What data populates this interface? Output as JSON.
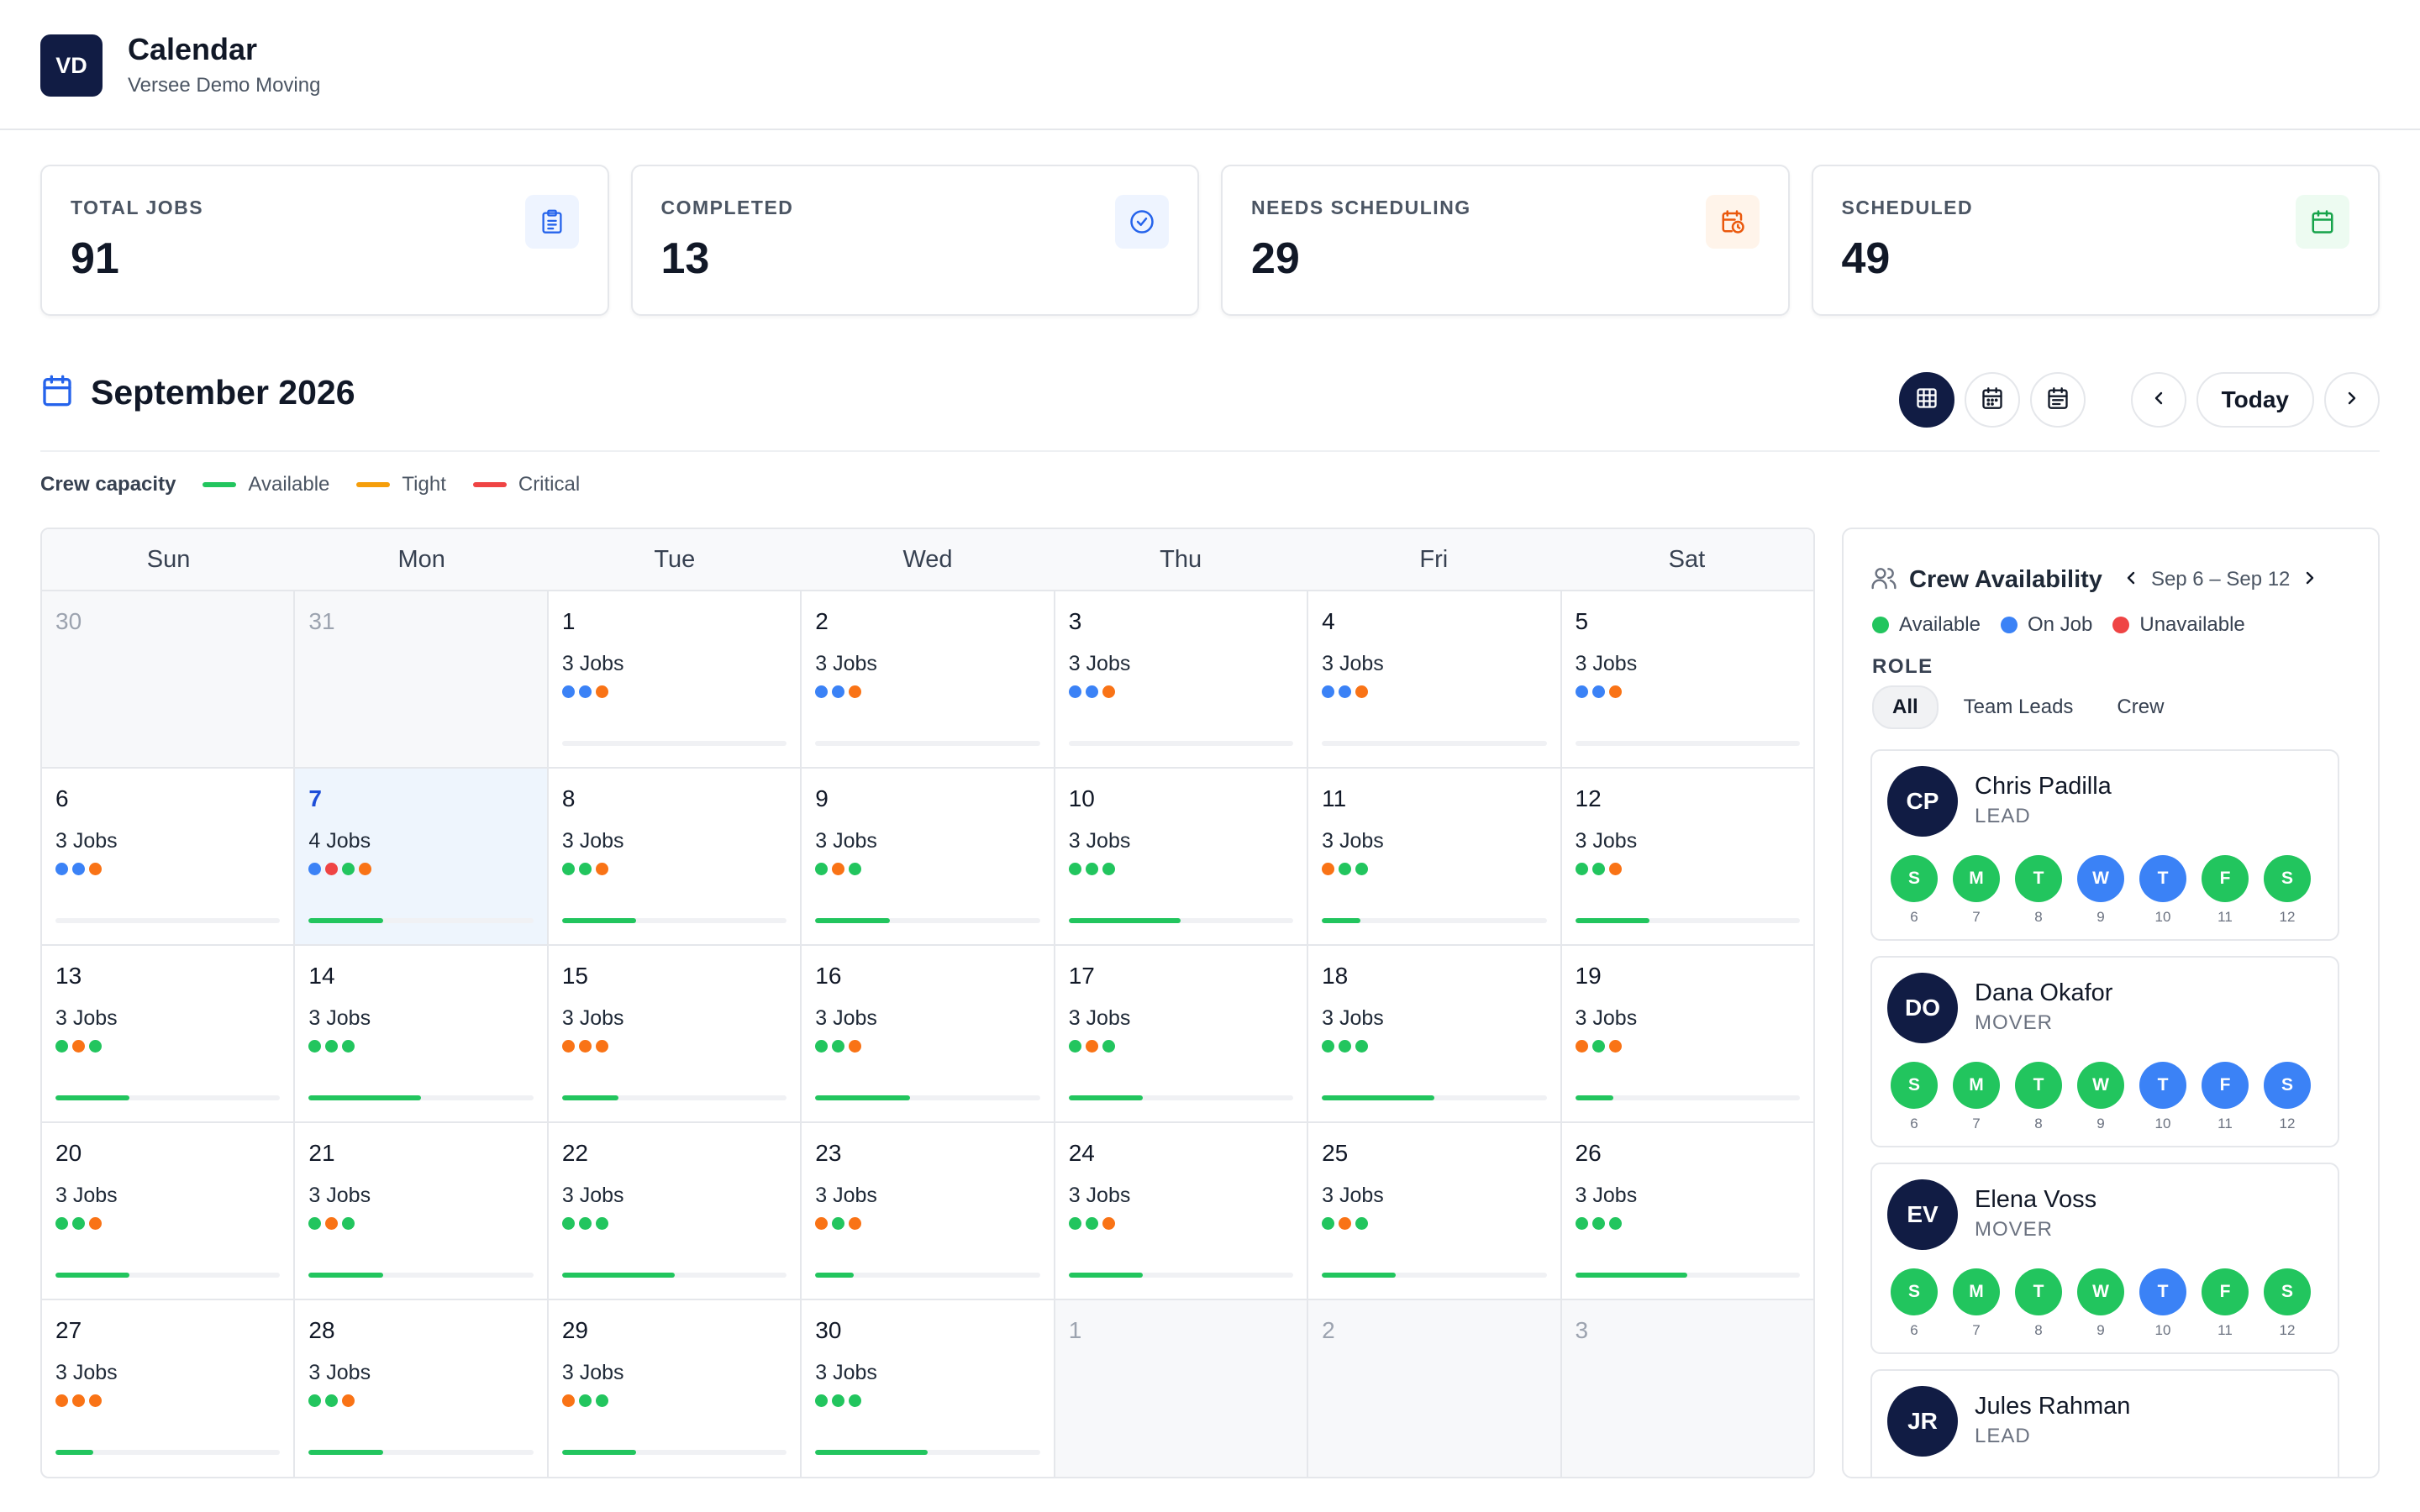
{
  "header": {
    "logo": "VD",
    "title": "Calendar",
    "subtitle": "Versee Demo Moving"
  },
  "stats": [
    {
      "label": "TOTAL JOBS",
      "value": "91",
      "icon": "clipboard-icon",
      "icon_color": "#2563eb",
      "icon_bg": "#eef4ff"
    },
    {
      "label": "COMPLETED",
      "value": "13",
      "icon": "check-circle-icon",
      "icon_color": "#2563eb",
      "icon_bg": "#eef4ff"
    },
    {
      "label": "NEEDS SCHEDULING",
      "value": "29",
      "icon": "calendar-clock-icon",
      "icon_color": "#ea580c",
      "icon_bg": "#fff4ea"
    },
    {
      "label": "SCHEDULED",
      "value": "49",
      "icon": "calendar-icon",
      "icon_color": "#16a34a",
      "icon_bg": "#edfbf1"
    }
  ],
  "month": {
    "title": "September 2026",
    "today_label": "Today"
  },
  "legend": {
    "title": "Crew capacity",
    "items": [
      {
        "label": "Available",
        "color": "#22c55e"
      },
      {
        "label": "Tight",
        "color": "#f59e0b"
      },
      {
        "label": "Critical",
        "color": "#ef4444"
      }
    ]
  },
  "colors": {
    "green": "#22c55e",
    "blue": "#3b82f6",
    "orange": "#f97316",
    "red": "#ef4444",
    "navy": "#111c44"
  },
  "calendar": {
    "weekdays": [
      "Sun",
      "Mon",
      "Tue",
      "Wed",
      "Thu",
      "Fri",
      "Sat"
    ],
    "weeks": [
      [
        {
          "num": "30",
          "outside": true
        },
        {
          "num": "31",
          "outside": true
        },
        {
          "num": "1",
          "jobs": "3 Jobs",
          "dots": [
            "blue",
            "blue",
            "orange"
          ],
          "capacity": 0
        },
        {
          "num": "2",
          "jobs": "3 Jobs",
          "dots": [
            "blue",
            "blue",
            "orange"
          ],
          "capacity": 0
        },
        {
          "num": "3",
          "jobs": "3 Jobs",
          "dots": [
            "blue",
            "blue",
            "orange"
          ],
          "capacity": 0
        },
        {
          "num": "4",
          "jobs": "3 Jobs",
          "dots": [
            "blue",
            "blue",
            "orange"
          ],
          "capacity": 0
        },
        {
          "num": "5",
          "jobs": "3 Jobs",
          "dots": [
            "blue",
            "blue",
            "orange"
          ],
          "capacity": 0
        }
      ],
      [
        {
          "num": "6",
          "jobs": "3 Jobs",
          "dots": [
            "blue",
            "blue",
            "orange"
          ],
          "capacity": 0
        },
        {
          "num": "7",
          "jobs": "4 Jobs",
          "dots": [
            "blue",
            "red",
            "green",
            "orange"
          ],
          "capacity": 0.33,
          "today": true
        },
        {
          "num": "8",
          "jobs": "3 Jobs",
          "dots": [
            "green",
            "green",
            "orange"
          ],
          "capacity": 0.33
        },
        {
          "num": "9",
          "jobs": "3 Jobs",
          "dots": [
            "green",
            "orange",
            "green"
          ],
          "capacity": 0.33
        },
        {
          "num": "10",
          "jobs": "3 Jobs",
          "dots": [
            "green",
            "green",
            "green"
          ],
          "capacity": 0.5
        },
        {
          "num": "11",
          "jobs": "3 Jobs",
          "dots": [
            "orange",
            "green",
            "green"
          ],
          "capacity": 0.17
        },
        {
          "num": "12",
          "jobs": "3 Jobs",
          "dots": [
            "green",
            "green",
            "orange"
          ],
          "capacity": 0.33
        }
      ],
      [
        {
          "num": "13",
          "jobs": "3 Jobs",
          "dots": [
            "green",
            "orange",
            "green"
          ],
          "capacity": 0.33
        },
        {
          "num": "14",
          "jobs": "3 Jobs",
          "dots": [
            "green",
            "green",
            "green"
          ],
          "capacity": 0.5
        },
        {
          "num": "15",
          "jobs": "3 Jobs",
          "dots": [
            "orange",
            "orange",
            "orange"
          ],
          "capacity": 0.25
        },
        {
          "num": "16",
          "jobs": "3 Jobs",
          "dots": [
            "green",
            "green",
            "orange"
          ],
          "capacity": 0.42
        },
        {
          "num": "17",
          "jobs": "3 Jobs",
          "dots": [
            "green",
            "orange",
            "green"
          ],
          "capacity": 0.33
        },
        {
          "num": "18",
          "jobs": "3 Jobs",
          "dots": [
            "green",
            "green",
            "green"
          ],
          "capacity": 0.5
        },
        {
          "num": "19",
          "jobs": "3 Jobs",
          "dots": [
            "orange",
            "green",
            "orange"
          ],
          "capacity": 0.17
        }
      ],
      [
        {
          "num": "20",
          "jobs": "3 Jobs",
          "dots": [
            "green",
            "green",
            "orange"
          ],
          "capacity": 0.33
        },
        {
          "num": "21",
          "jobs": "3 Jobs",
          "dots": [
            "green",
            "orange",
            "green"
          ],
          "capacity": 0.33
        },
        {
          "num": "22",
          "jobs": "3 Jobs",
          "dots": [
            "green",
            "green",
            "green"
          ],
          "capacity": 0.5
        },
        {
          "num": "23",
          "jobs": "3 Jobs",
          "dots": [
            "orange",
            "green",
            "orange"
          ],
          "capacity": 0.17
        },
        {
          "num": "24",
          "jobs": "3 Jobs",
          "dots": [
            "green",
            "green",
            "orange"
          ],
          "capacity": 0.33
        },
        {
          "num": "25",
          "jobs": "3 Jobs",
          "dots": [
            "green",
            "orange",
            "green"
          ],
          "capacity": 0.33
        },
        {
          "num": "26",
          "jobs": "3 Jobs",
          "dots": [
            "green",
            "green",
            "green"
          ],
          "capacity": 0.5
        }
      ],
      [
        {
          "num": "27",
          "jobs": "3 Jobs",
          "dots": [
            "orange",
            "orange",
            "orange"
          ],
          "capacity": 0.17
        },
        {
          "num": "28",
          "jobs": "3 Jobs",
          "dots": [
            "green",
            "green",
            "orange"
          ],
          "capacity": 0.33
        },
        {
          "num": "29",
          "jobs": "3 Jobs",
          "dots": [
            "orange",
            "green",
            "green"
          ],
          "capacity": 0.33
        },
        {
          "num": "30",
          "jobs": "3 Jobs",
          "dots": [
            "green",
            "green",
            "green"
          ],
          "capacity": 0.5
        },
        {
          "num": "1",
          "outside": true
        },
        {
          "num": "2",
          "outside": true
        },
        {
          "num": "3",
          "outside": true
        }
      ]
    ]
  },
  "crew": {
    "title": "Crew Availability",
    "range": "Sep 6 – Sep 12",
    "legend": [
      {
        "label": "Available",
        "color": "#22c55e"
      },
      {
        "label": "On Job",
        "color": "#3b82f6"
      },
      {
        "label": "Unavailable",
        "color": "#ef4444"
      }
    ],
    "role_label": "ROLE",
    "roles": [
      "All",
      "Team Leads",
      "Crew"
    ],
    "active_role": "All",
    "members": [
      {
        "initials": "CP",
        "name": "Chris Padilla",
        "role": "LEAD",
        "days": [
          {
            "letter": "S",
            "num": "6",
            "status": "available"
          },
          {
            "letter": "M",
            "num": "7",
            "status": "available"
          },
          {
            "letter": "T",
            "num": "8",
            "status": "available"
          },
          {
            "letter": "W",
            "num": "9",
            "status": "onjob"
          },
          {
            "letter": "T",
            "num": "10",
            "status": "onjob"
          },
          {
            "letter": "F",
            "num": "11",
            "status": "available"
          },
          {
            "letter": "S",
            "num": "12",
            "status": "available"
          }
        ]
      },
      {
        "initials": "DO",
        "name": "Dana Okafor",
        "role": "MOVER",
        "days": [
          {
            "letter": "S",
            "num": "6",
            "status": "available"
          },
          {
            "letter": "M",
            "num": "7",
            "status": "available"
          },
          {
            "letter": "T",
            "num": "8",
            "status": "available"
          },
          {
            "letter": "W",
            "num": "9",
            "status": "available"
          },
          {
            "letter": "T",
            "num": "10",
            "status": "onjob"
          },
          {
            "letter": "F",
            "num": "11",
            "status": "onjob"
          },
          {
            "letter": "S",
            "num": "12",
            "status": "onjob"
          }
        ]
      },
      {
        "initials": "EV",
        "name": "Elena Voss",
        "role": "MOVER",
        "days": [
          {
            "letter": "S",
            "num": "6",
            "status": "available"
          },
          {
            "letter": "M",
            "num": "7",
            "status": "available"
          },
          {
            "letter": "T",
            "num": "8",
            "status": "available"
          },
          {
            "letter": "W",
            "num": "9",
            "status": "available"
          },
          {
            "letter": "T",
            "num": "10",
            "status": "onjob"
          },
          {
            "letter": "F",
            "num": "11",
            "status": "available"
          },
          {
            "letter": "S",
            "num": "12",
            "status": "available"
          }
        ]
      },
      {
        "initials": "JR",
        "name": "Jules Rahman",
        "role": "LEAD",
        "days": []
      }
    ]
  }
}
